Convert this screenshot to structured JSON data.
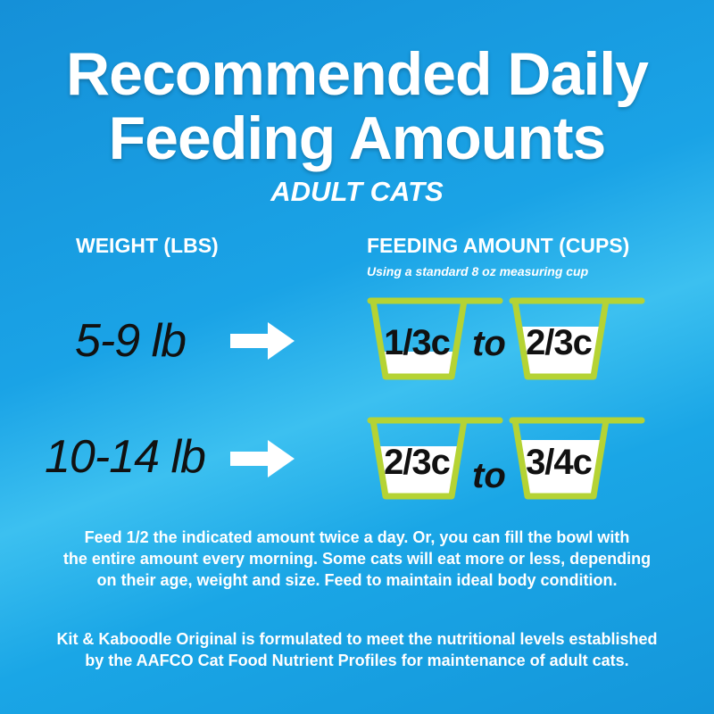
{
  "title": {
    "line1": "Recommended Daily",
    "line2": "Feeding Amounts",
    "subtitle": "ADULT CATS"
  },
  "headers": {
    "weight": "WEIGHT (LBS)",
    "feeding": "FEEDING AMOUNT (CUPS)",
    "note": "Using a standard 8 oz measuring cup"
  },
  "rows": [
    {
      "weight": "5-9 lb",
      "from": {
        "label": "1/3c",
        "fill": 0.333
      },
      "connector": "to",
      "to": {
        "label": "2/3c",
        "fill": 0.667
      }
    },
    {
      "weight": "10-14 lb",
      "from": {
        "label": "2/3c",
        "fill": 0.667
      },
      "connector": "to",
      "to": {
        "label": "3/4c",
        "fill": 0.75
      }
    }
  ],
  "instructions": [
    "Feed 1/2 the indicated amount twice a day. Or, you can fill the bowl with",
    "the entire amount every morning. Some cats will eat more or less, depending",
    "on their age, weight and size. Feed to maintain ideal body condition."
  ],
  "statement": [
    "Kit & Kaboodle Original is formulated to meet the nutritional levels established",
    "by the AAFCO Cat Food Nutrient Profiles for maintenance of adult cats."
  ],
  "colors": {
    "cup_outline": "#b5d334",
    "fill": "#ffffff",
    "text_dark": "#111111"
  }
}
